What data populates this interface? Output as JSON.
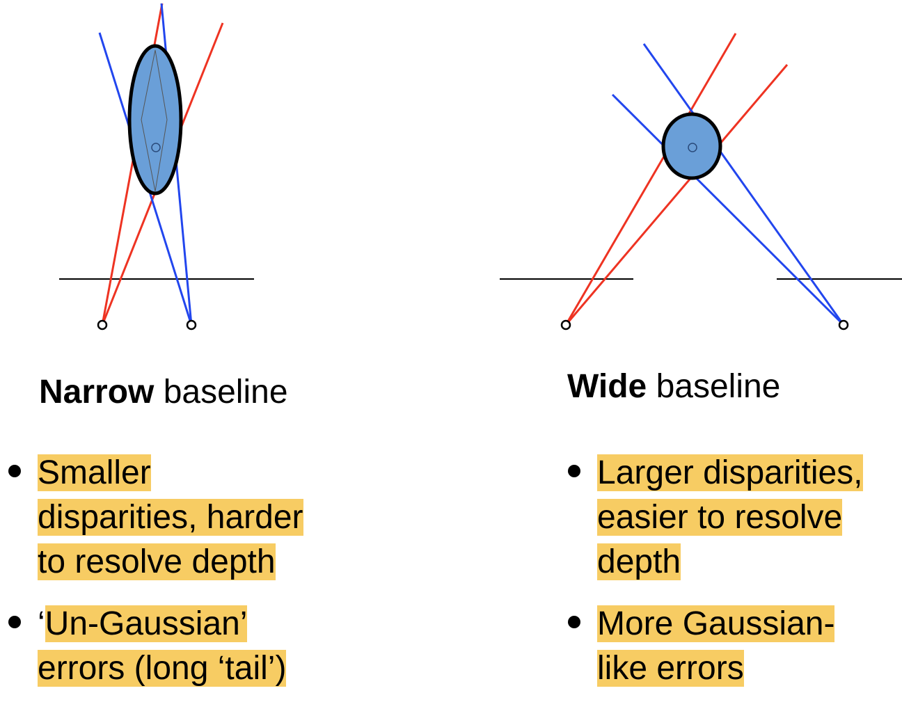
{
  "narrow": {
    "caption_bold": "Narrow",
    "caption_rest": " baseline",
    "bullets": [
      {
        "lines": [
          "Smaller",
          "disparities, harder",
          "to resolve depth"
        ]
      },
      {
        "prefix": "‘",
        "lines": [
          "Un-Gaussian’",
          "errors (long ‘tail’)"
        ]
      }
    ]
  },
  "wide": {
    "caption_bold": "Wide",
    "caption_rest": " baseline",
    "bullets": [
      {
        "lines": [
          "Larger disparities,",
          "easier to resolve",
          "depth"
        ]
      },
      {
        "lines": [
          "More Gaussian-",
          "like errors"
        ]
      }
    ]
  },
  "colors": {
    "ray_red": "#ee3322",
    "ray_blue": "#2246ee",
    "uncertainty_fill": "#6a9fd8",
    "highlight": "#f7cc63"
  }
}
